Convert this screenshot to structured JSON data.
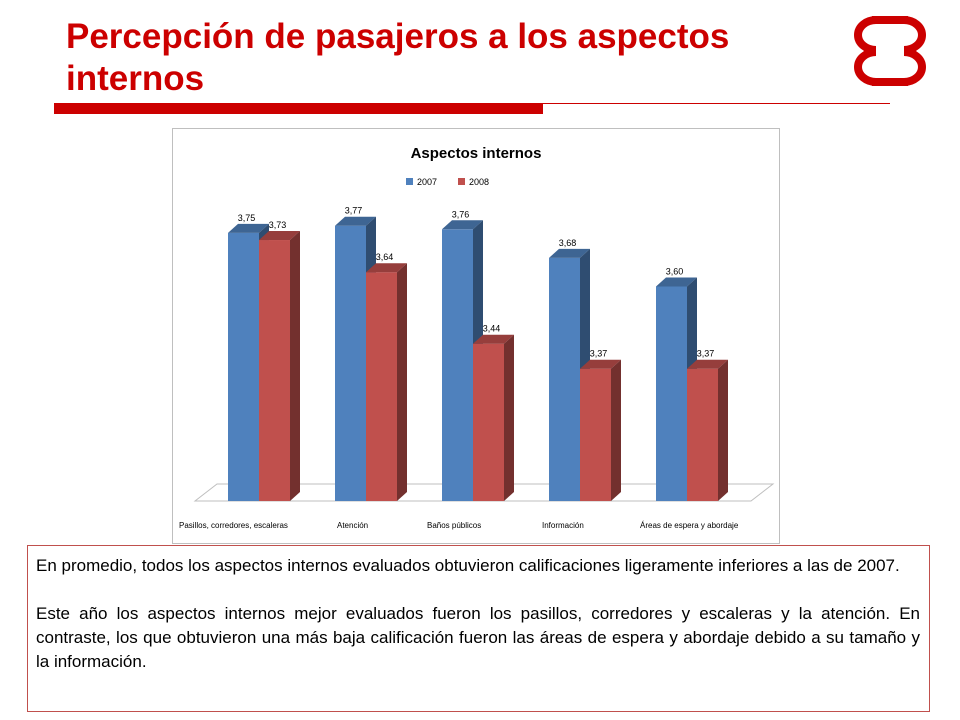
{
  "slide": {
    "title": "Percepción de pasajeros a los aspectos internos",
    "accent_color": "#cc0000",
    "logo_icon": "red-interlocking-c-logo"
  },
  "chart_data": {
    "type": "bar",
    "title": "Aspectos internos",
    "categories": [
      "Pasillos, corredores, escaleras",
      "Atención",
      "Baños públicos",
      "Información",
      "Áreas de espera y abordaje"
    ],
    "series": [
      {
        "name": "2007",
        "values": [
          3.75,
          3.77,
          3.76,
          3.68,
          3.6
        ],
        "labels": [
          "3,75",
          "3,77",
          "3,76",
          "3,68",
          "3,60"
        ],
        "color": "#4f81bd"
      },
      {
        "name": "2008",
        "values": [
          3.73,
          3.64,
          3.44,
          3.37,
          3.37
        ],
        "labels": [
          "3,73",
          "3,64",
          "3,44",
          "3,37",
          "3,37"
        ],
        "color": "#c0504d"
      }
    ],
    "ylim": [
      3.0,
      3.8
    ],
    "legend_position": "top",
    "grid": false,
    "style": "3d-clustered-column"
  },
  "text_box": {
    "paragraphs": [
      "En promedio, todos los aspectos internos evaluados obtuvieron calificaciones ligeramente inferiores a las de 2007.",
      "Este año los aspectos internos mejor evaluados fueron los pasillos, corredores y escaleras y la atención. En contraste, los que obtuvieron una más baja calificación fueron las áreas de espera y abordaje debido a su tamaño y la información."
    ]
  }
}
